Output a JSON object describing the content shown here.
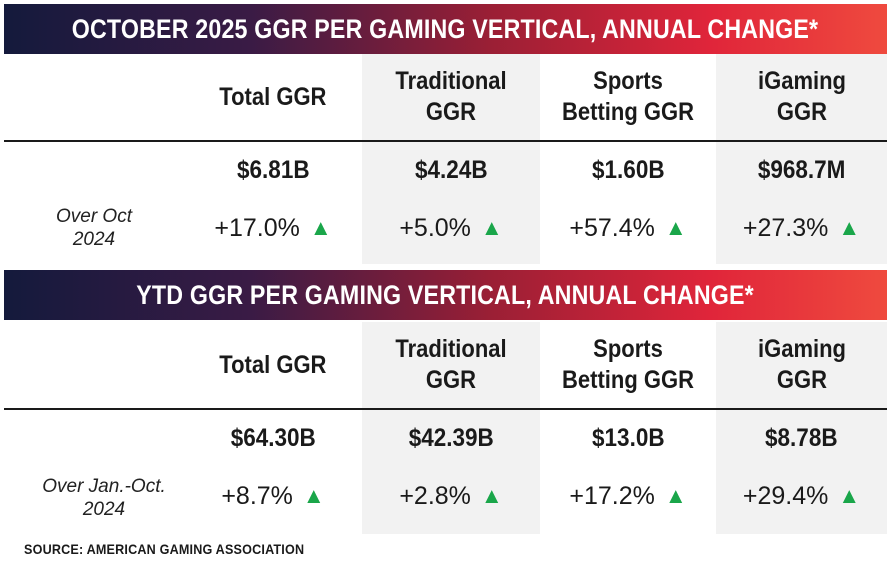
{
  "tables": [
    {
      "title": "OCTOBER 2025 GGR PER GAMING VERTICAL, ANNUAL CHANGE*",
      "columns": [
        {
          "header": "Total GGR",
          "value": "$6.81B",
          "change": "+17.0%"
        },
        {
          "header": "Traditional GGR",
          "value": "$4.24B",
          "change": "+5.0%"
        },
        {
          "header": "Sports Betting GGR",
          "value": "$1.60B",
          "change": "+57.4%"
        },
        {
          "header": "iGaming GGR",
          "value": "$968.7M",
          "change": "+27.3%"
        }
      ],
      "change_label": "Over Oct 2024"
    },
    {
      "title": "YTD GGR PER GAMING VERTICAL, ANNUAL CHANGE*",
      "columns": [
        {
          "header": "Total GGR",
          "value": "$64.30B",
          "change": "+8.7%"
        },
        {
          "header": "Traditional GGR",
          "value": "$42.39B",
          "change": "+2.8%"
        },
        {
          "header": "Sports Betting GGR",
          "value": "$13.0B",
          "change": "+17.2%"
        },
        {
          "header": "iGaming GGR",
          "value": "$8.78B",
          "change": "+29.4%"
        }
      ],
      "change_label": "Over Jan.-Oct. 2024"
    }
  ],
  "change_marker": "▲",
  "source": "SOURCE: AMERICAN GAMING ASSOCIATION",
  "colors": {
    "banner_start": "#141a3c",
    "banner_end": "#ef4a3e",
    "up_arrow": "#1aa64a",
    "shade": "#f2f2f2"
  },
  "chart_data": {
    "type": "table",
    "tables": [
      {
        "title": "OCTOBER 2025 GGR PER GAMING VERTICAL, ANNUAL CHANGE*",
        "categories": [
          "Total GGR",
          "Traditional GGR",
          "Sports Betting GGR",
          "iGaming GGR"
        ],
        "values": [
          "$6.81B",
          "$4.24B",
          "$1.60B",
          "$968.7M"
        ],
        "change_pct": [
          17.0,
          5.0,
          57.4,
          27.3
        ]
      },
      {
        "title": "YTD GGR PER GAMING VERTICAL, ANNUAL CHANGE*",
        "categories": [
          "Total GGR",
          "Traditional GGR",
          "Sports Betting GGR",
          "iGaming GGR"
        ],
        "values": [
          "$64.30B",
          "$42.39B",
          "$13.0B",
          "$8.78B"
        ],
        "change_pct": [
          8.7,
          2.8,
          17.2,
          29.4
        ]
      }
    ]
  }
}
